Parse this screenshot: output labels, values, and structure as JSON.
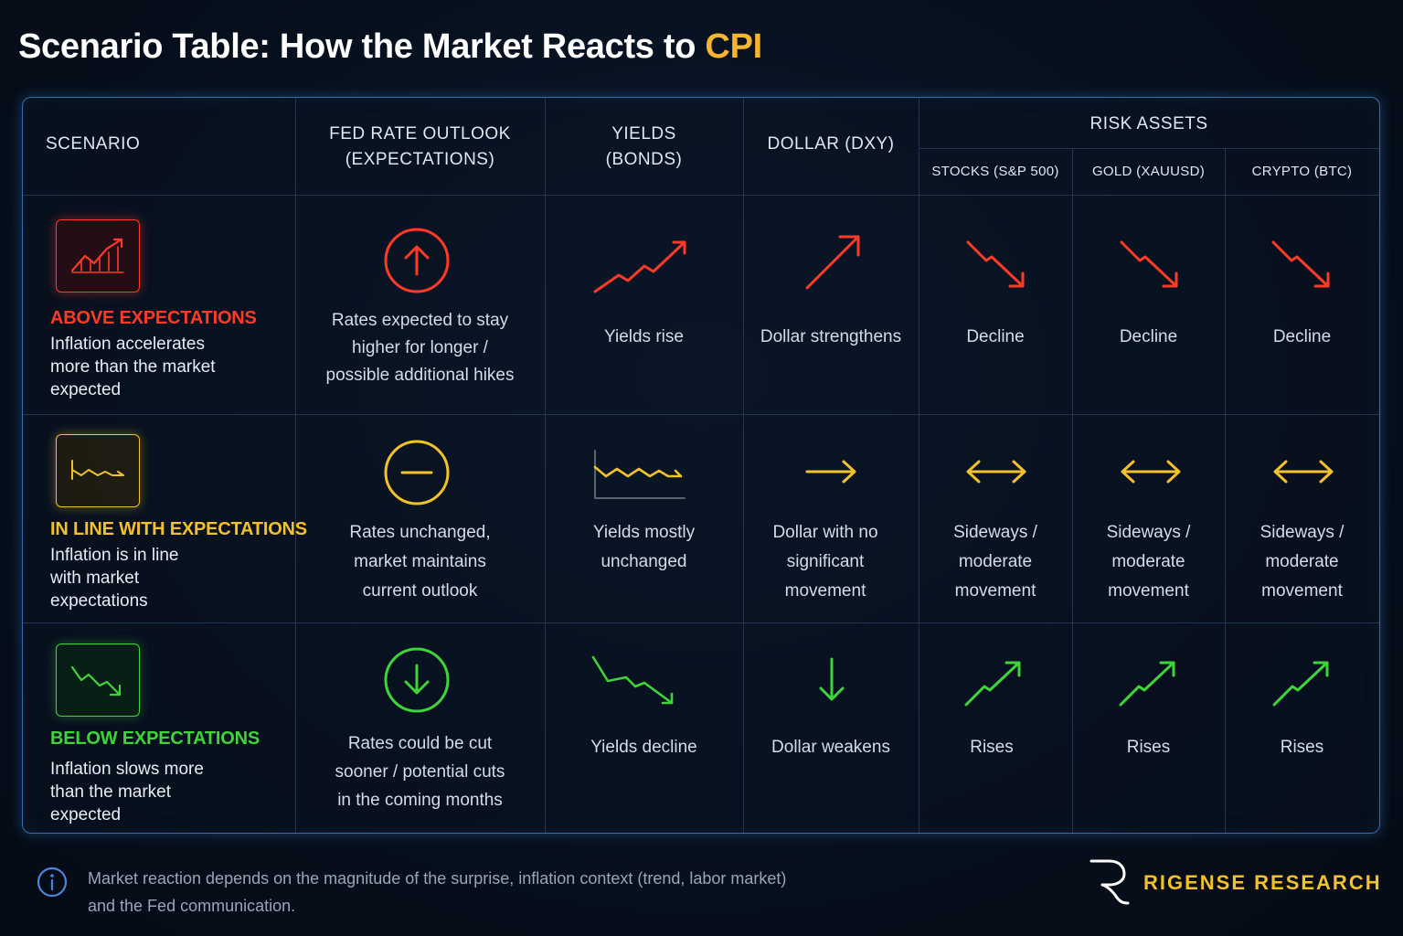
{
  "title": {
    "prefix": "Scenario Table: How the Market Reacts to ",
    "highlight": "CPI"
  },
  "headers": {
    "scenario": "SCENARIO",
    "fed_line1": "FED RATE OUTLOOK",
    "fed_line2": "(EXPECTATIONS)",
    "yields_line1": "YIELDS",
    "yields_line2": "(BONDS)",
    "dollar": "DOLLAR (DXY)",
    "risk_assets": "RISK ASSETS",
    "stocks": "STOCKS (S&P 500)",
    "gold": "GOLD (XAUUSD)",
    "crypto": "CRYPTO (BTC)"
  },
  "rows": [
    {
      "title": "ABOVE EXPECTATIONS",
      "desc": [
        "Inflation accelerates",
        "more than the market",
        "expected"
      ],
      "fed": [
        "Rates expected to stay",
        "higher for longer /",
        "possible additional hikes"
      ],
      "yields": [
        "Yields rise"
      ],
      "dollar": [
        "Dollar strengthens"
      ],
      "stocks": [
        "Decline"
      ],
      "gold": [
        "Decline"
      ],
      "crypto": [
        "Decline"
      ],
      "color": "#ff3b28"
    },
    {
      "title": "IN LINE WITH EXPECTATIONS",
      "desc": [
        "Inflation is in line",
        "with market",
        "expectations"
      ],
      "fed": [
        "Rates unchanged,",
        "market maintains",
        "current outlook"
      ],
      "yields": [
        "Yields mostly",
        "unchanged"
      ],
      "dollar": [
        "Dollar with no",
        "significant",
        "movement"
      ],
      "stocks": [
        "Sideways /",
        "moderate",
        "movement"
      ],
      "gold": [
        "Sideways /",
        "moderate",
        "movement"
      ],
      "crypto": [
        "Sideways /",
        "moderate",
        "movement"
      ],
      "color": "#f2c12c"
    },
    {
      "title": "BELOW EXPECTATIONS",
      "desc": [
        "Inflation slows more",
        "than the market",
        "expected"
      ],
      "fed": [
        "Rates could be cut",
        "sooner / potential cuts",
        "in the coming months"
      ],
      "yields": [
        "Yields decline"
      ],
      "dollar": [
        "Dollar weakens"
      ],
      "stocks": [
        "Rises"
      ],
      "gold": [
        "Rises"
      ],
      "crypto": [
        "Rises"
      ],
      "color": "#3fd43a"
    }
  ],
  "footer": {
    "line1": "Market reaction depends on the magnitude of the surprise, inflation context (trend, labor market)",
    "line2": "and the Fed communication.",
    "brand": "RIGENSE RESEARCH"
  },
  "icons": [
    "info-icon",
    "brand-logo",
    "chart-up-icon",
    "chart-flat-icon",
    "chart-down-icon",
    "arrow-up-circle-icon",
    "minus-circle-icon",
    "arrow-down-circle-icon",
    "trend-up-icon",
    "trend-down-icon",
    "arrow-right-icon",
    "arrow-down-icon",
    "double-arrow-icon"
  ]
}
